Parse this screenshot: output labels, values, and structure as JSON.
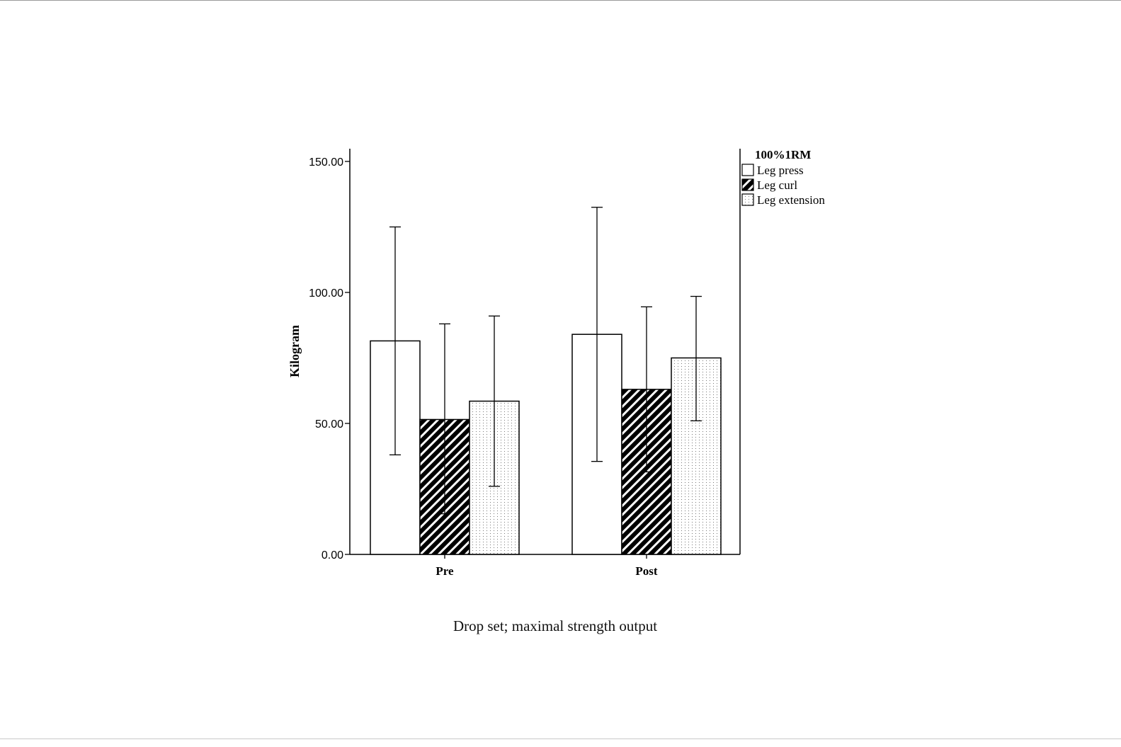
{
  "chart_data": {
    "type": "bar",
    "categories": [
      "Pre",
      "Post"
    ],
    "ylabel": "Kilogram",
    "xlabel": "",
    "ylim": [
      0,
      150
    ],
    "yticks": [
      "0.00",
      "50.00",
      "100.00",
      "150.00"
    ],
    "legend_title": "100%1RM",
    "legend_position": "top-right, outside plot",
    "grid": false,
    "series": [
      {
        "name": "Leg press",
        "pattern": "open",
        "values": [
          81.5,
          84.0
        ],
        "error_low": [
          38.0,
          35.5
        ],
        "error_high": [
          125.0,
          132.5
        ]
      },
      {
        "name": "Leg curl",
        "pattern": "diagonal-hatch",
        "values": [
          51.5,
          63.0
        ],
        "error_low": [
          15.5,
          31.5
        ],
        "error_high": [
          88.0,
          94.5
        ]
      },
      {
        "name": "Leg extension",
        "pattern": "dotted",
        "values": [
          58.5,
          75.0
        ],
        "error_low": [
          26.0,
          51.0
        ],
        "error_high": [
          91.0,
          98.5
        ]
      }
    ]
  },
  "caption": "Drop set; maximal strength output",
  "colors": {
    "stroke": "#000000",
    "fill": "#ffffff",
    "axis": "#000000"
  }
}
